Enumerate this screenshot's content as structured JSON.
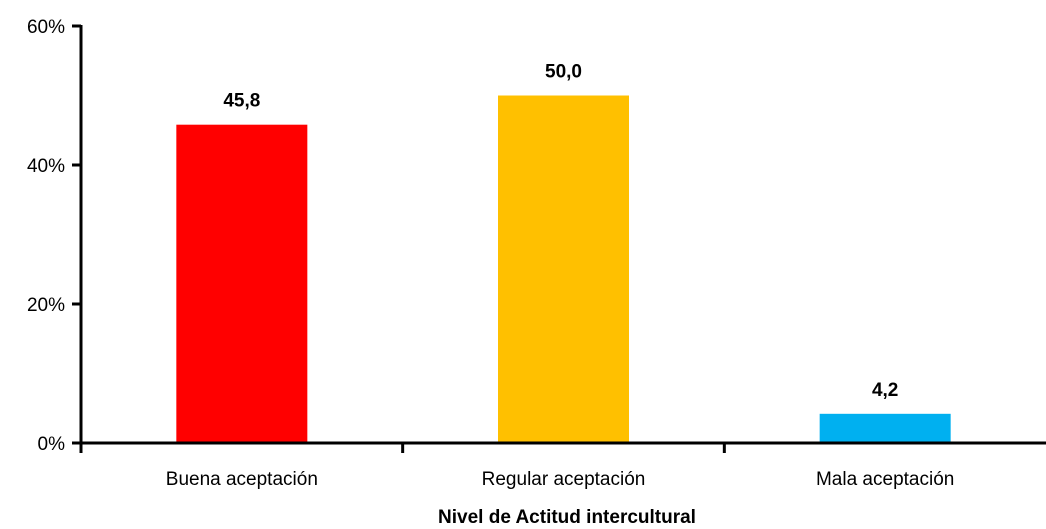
{
  "chart_data": {
    "type": "bar",
    "title": "",
    "xlabel": "Nivel de Actitud intercultural",
    "ylabel": "",
    "categories": [
      "Buena aceptación",
      "Regular aceptación",
      "Mala aceptación"
    ],
    "values": [
      45.8,
      50.0,
      4.2
    ],
    "value_labels": [
      "45,8",
      "50,0",
      "4,2"
    ],
    "colors": [
      "#FF0000",
      "#FFC000",
      "#00B0F0"
    ],
    "ylim": [
      0,
      60
    ],
    "yticks": [
      0,
      20,
      40,
      60
    ],
    "ytick_labels": [
      "0%",
      "20%",
      "40%",
      "60%"
    ],
    "grid": false,
    "legend": "none"
  }
}
